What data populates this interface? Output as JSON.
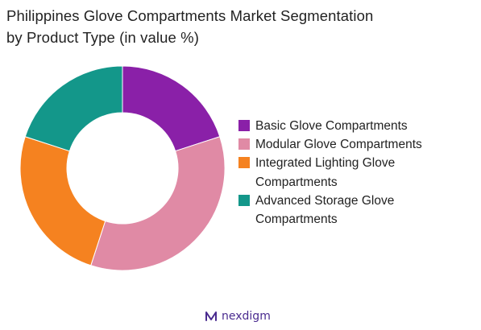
{
  "title": {
    "line1": "Philippines Glove Compartments Market Segmentation",
    "line2": "by Product Type (in value %)"
  },
  "chart_data": {
    "type": "pie",
    "variant": "donut",
    "title": "Philippines Glove Compartments Market Segmentation by Product Type (in value %)",
    "categories": [
      "Basic Glove Compartments",
      "Modular Glove Compartments",
      "Integrated Lighting Glove Compartments",
      "Advanced Storage Glove Compartments"
    ],
    "values": [
      20,
      35,
      25,
      20
    ],
    "colors": [
      "#8a20a8",
      "#e08aa5",
      "#f58220",
      "#13978a"
    ],
    "legend_position": "right"
  },
  "legend": {
    "items": [
      {
        "label": "Basic Glove Compartments",
        "color": "#8a20a8"
      },
      {
        "label": "Modular Glove Compartments",
        "color": "#e08aa5"
      },
      {
        "label": "Integrated Lighting Glove Compartments",
        "color": "#f58220"
      },
      {
        "label": "Advanced Storage Glove Compartments",
        "color": "#13978a"
      }
    ]
  },
  "brand": {
    "name": "nexdigm",
    "icon": "nexdigm-logo-icon",
    "color": "#4a2b8f"
  }
}
